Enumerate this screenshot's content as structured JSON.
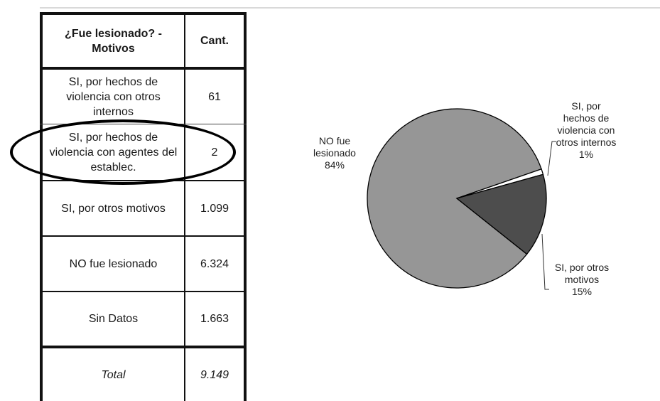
{
  "table": {
    "header": {
      "col1": "¿Fue lesionado? - Motivos",
      "col2": "Cant."
    },
    "rows": [
      {
        "label": "SI, por hechos de violencia con otros internos",
        "value": "61"
      },
      {
        "label": "SI, por hechos de violencia con agentes del establec.",
        "value": "2"
      },
      {
        "label": "SI, por otros motivos",
        "value": "1.099"
      },
      {
        "label": "NO fue lesionado",
        "value": "6.324"
      },
      {
        "label": "Sin Datos",
        "value": "1.663"
      }
    ],
    "total": {
      "label": "Total",
      "value": "9.149"
    }
  },
  "chart_data": {
    "type": "pie",
    "slices": [
      {
        "label_lines": [
          "NO fue",
          "lesionado",
          "84%"
        ],
        "value": 84,
        "color": "#969696"
      },
      {
        "label_lines": [
          "SI, por",
          "hechos de",
          "violencia con",
          "otros internos",
          "1%"
        ],
        "value": 1,
        "color": "#ffffff"
      },
      {
        "label_lines": [
          "SI, por otros",
          "motivos",
          "15%"
        ],
        "value": 15,
        "color": "#4d4d4d"
      }
    ]
  },
  "colors": {
    "border": "#111111",
    "background": "#ffffff"
  }
}
